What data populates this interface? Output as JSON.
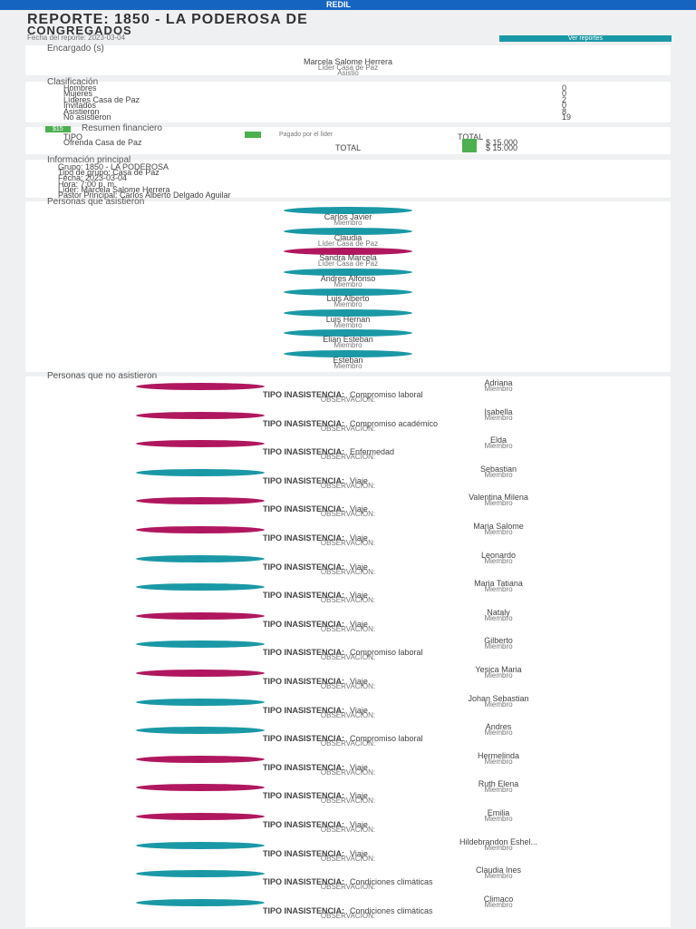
{
  "topbar": {
    "brand": "REDIL"
  },
  "header": {
    "title": "REPORTE: 1850 - LA PODEROSA DE",
    "title2": "CONGREGADOS",
    "date": "Fecha del reporte: 2023-03-04",
    "button": "Ver reportes"
  },
  "leader": {
    "heading": "Encargado (s)",
    "name": "Marcela Salome Herrera",
    "role": "Líder Casa de Paz",
    "status": "Asistió"
  },
  "classification": {
    "heading": "Clasificación",
    "rows": [
      [
        "Hombres",
        "0"
      ],
      [
        "Mujeres",
        "0"
      ],
      [
        "Líderes Casa de Paz",
        "2"
      ],
      [
        "Invitados",
        "0"
      ],
      [
        "Asistieron",
        "8"
      ],
      [
        "No asistieron",
        "19"
      ]
    ]
  },
  "finance": {
    "heading": "Resumen financiero",
    "badge": "$15",
    "paid_badge": "Pagado por el líder",
    "col_type": "TIPO",
    "col_total": "TOTAL",
    "row_label": "Ofrenda Casa de Paz",
    "row_value": "$ 15.000",
    "total_label": "TOTAL",
    "total_value": "$ 15.000"
  },
  "info": {
    "heading": "Información principal",
    "rows": [
      "Grupo: 1850 - LA PODEROSA",
      "Tipo de grupo: Casa de Paz",
      "Fecha: 2023-03-04",
      "Hora: 7:00 p. m.",
      "Líder: Marcela Salome Herrera",
      "Pastor Principal: Carlos Alberto Delgado Aguilar"
    ]
  },
  "attended": {
    "heading": "Personas que asistieron",
    "people": [
      {
        "name": "Carlos Javier",
        "role": "Miembro",
        "color": "#1a98a6"
      },
      {
        "name": "Claudia",
        "role": "Líder Casa de Paz",
        "color": "#1a98a6"
      },
      {
        "name": "Sandra Marcela",
        "role": "Líder Casa de Paz",
        "color": "#b0175f"
      },
      {
        "name": "Andres Alfonso",
        "role": "Miembro",
        "color": "#1a98a6"
      },
      {
        "name": "Luis Alberto",
        "role": "Miembro",
        "color": "#1a98a6"
      },
      {
        "name": "Luis Hernan",
        "role": "Miembro",
        "color": "#1a98a6"
      },
      {
        "name": "Elian Esteban",
        "role": "Miembro",
        "color": "#1a98a6"
      },
      {
        "name": "Esteban",
        "role": "Miembro",
        "color": "#1a98a6"
      }
    ]
  },
  "absent": {
    "heading": "Personas que no asistieron",
    "type_label": "TIPO INASISTENCIA:",
    "obs_label": "OBSERVACIÓN:",
    "people": [
      {
        "name": "Adriana",
        "role": "Miembro",
        "type": "Compromiso laboral",
        "color": "#b0175f"
      },
      {
        "name": "Isabella",
        "role": "Miembro",
        "type": "Compromiso académico",
        "color": "#b0175f"
      },
      {
        "name": "Elda",
        "role": "Miembro",
        "type": "Enfermedad",
        "color": "#b0175f"
      },
      {
        "name": "Sebastian",
        "role": "Miembro",
        "type": "Viaje",
        "color": "#1a98a6"
      },
      {
        "name": "Valentina Milena",
        "role": "Miembro",
        "type": "Viaje",
        "color": "#b0175f"
      },
      {
        "name": "Maria Salome",
        "role": "Miembro",
        "type": "Viaje",
        "color": "#b0175f"
      },
      {
        "name": "Leonardo",
        "role": "Miembro",
        "type": "Viaje",
        "color": "#1a98a6"
      },
      {
        "name": "Maria Tatiana",
        "role": "Miembro",
        "type": "Viaje",
        "color": "#1a98a6"
      },
      {
        "name": "Nataly",
        "role": "Miembro",
        "type": "Viaje",
        "color": "#b0175f"
      },
      {
        "name": "Gilberto",
        "role": "Miembro",
        "type": "Compromiso laboral",
        "color": "#1a98a6"
      },
      {
        "name": "Yesica Maria",
        "role": "Miembro",
        "type": "Viaje",
        "color": "#b0175f"
      },
      {
        "name": "Johan Sebastian",
        "role": "Miembro",
        "type": "Viaje",
        "color": "#1a98a6"
      },
      {
        "name": "Andres",
        "role": "Miembro",
        "type": "Compromiso laboral",
        "color": "#1a98a6"
      },
      {
        "name": "Hermelinda",
        "role": "Miembro",
        "type": "Viaje",
        "color": "#b0175f"
      },
      {
        "name": "Ruth Elena",
        "role": "Miembro",
        "type": "Viaje",
        "color": "#b0175f"
      },
      {
        "name": "Emilia",
        "role": "Miembro",
        "type": "Viaje",
        "color": "#b0175f"
      },
      {
        "name": "Hildebrandon Eshel...",
        "role": "Miembro",
        "type": "Viaje",
        "color": "#1a98a6"
      },
      {
        "name": "Claudia Ines",
        "role": "Miembro",
        "type": "Condiciones climáticas",
        "color": "#1a98a6"
      },
      {
        "name": "Climaco",
        "role": "Miembro",
        "type": "Condiciones climáticas",
        "color": "#1a98a6"
      }
    ]
  }
}
